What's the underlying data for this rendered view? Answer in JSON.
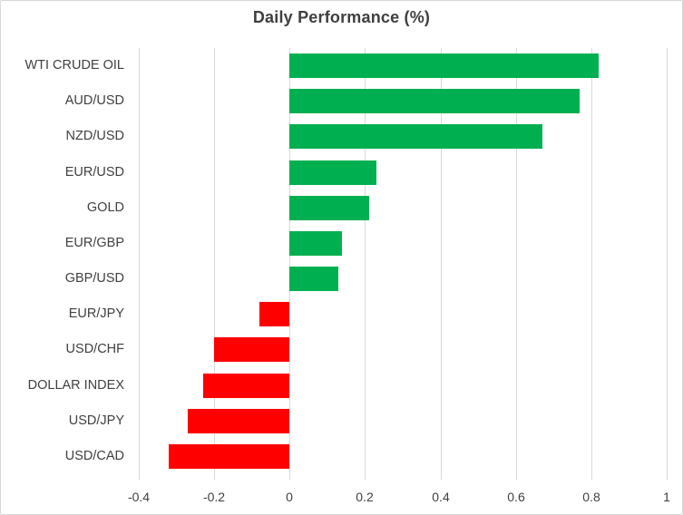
{
  "chart_data": {
    "type": "bar",
    "orientation": "horizontal",
    "title": "Daily Performance (%)",
    "categories": [
      "WTI CRUDE OIL",
      "AUD/USD",
      "NZD/USD",
      "EUR/USD",
      "GOLD",
      "EUR/GBP",
      "GBP/USD",
      "EUR/JPY",
      "USD/CHF",
      "DOLLAR INDEX",
      "USD/JPY",
      "USD/CAD"
    ],
    "values": [
      0.82,
      0.77,
      0.67,
      0.23,
      0.21,
      0.14,
      0.13,
      -0.08,
      -0.2,
      -0.23,
      -0.27,
      -0.32
    ],
    "xlabel": "",
    "ylabel": "",
    "xlim": [
      -0.4,
      1.0
    ],
    "x_ticks": [
      -0.4,
      -0.2,
      0,
      0.2,
      0.4,
      0.6,
      0.8,
      1
    ],
    "x_tick_labels": [
      "-0.4",
      "-0.2",
      "0",
      "0.2",
      "0.4",
      "0.6",
      "0.8",
      "1"
    ],
    "grid": true,
    "legend": false,
    "colors": {
      "positive_bar": "#00B050",
      "negative_bar": "#FF0000",
      "gridline": "#D9D9D9",
      "text": "#404040",
      "title_text": "#3F3F3F",
      "frame_border": "#D7D7D7",
      "background": "#FFFFFF"
    }
  }
}
